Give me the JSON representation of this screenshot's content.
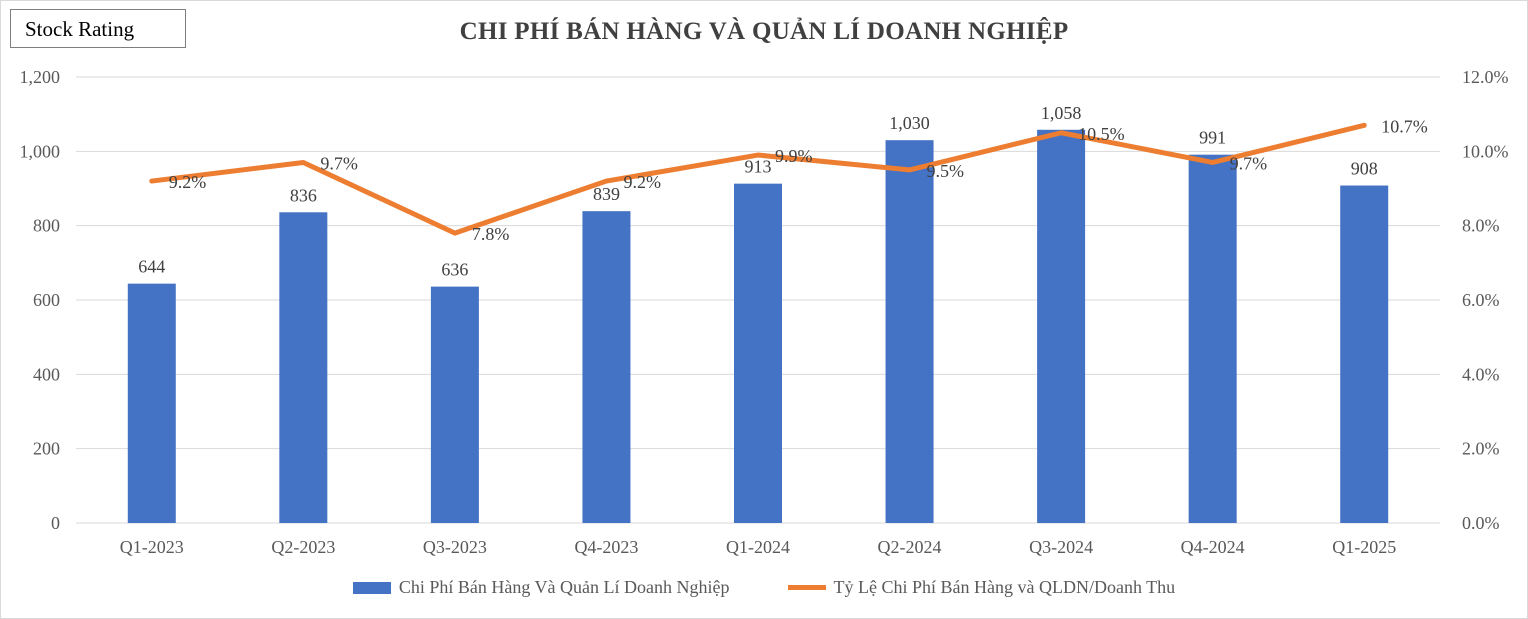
{
  "badge": {
    "label": "Stock Rating"
  },
  "chart_data": {
    "type": "bar",
    "title": "CHI PHÍ BÁN HÀNG VÀ QUẢN LÍ DOANH NGHIỆP",
    "categories": [
      "Q1-2023",
      "Q2-2023",
      "Q3-2023",
      "Q4-2023",
      "Q1-2024",
      "Q2-2024",
      "Q3-2024",
      "Q4-2024",
      "Q1-2025"
    ],
    "series": [
      {
        "name": "Chi Phí Bán Hàng Và Quản Lí Doanh Nghiệp",
        "type": "bar",
        "axis": "left",
        "color": "#4472c4",
        "values": [
          644,
          836,
          636,
          839,
          913,
          1030,
          1058,
          991,
          908
        ],
        "labels": [
          "644",
          "836",
          "636",
          "839",
          "913",
          "1,030",
          "1,058",
          "991",
          "908"
        ]
      },
      {
        "name": "Tỷ Lệ Chi Phí Bán Hàng và QLDN/Doanh Thu",
        "type": "line",
        "axis": "right",
        "color": "#ed7d31",
        "values": [
          9.2,
          9.7,
          7.8,
          9.2,
          9.9,
          9.5,
          10.5,
          9.7,
          10.7
        ],
        "labels": [
          "9.2%",
          "9.7%",
          "7.8%",
          "9.2%",
          "9.9%",
          "9.5%",
          "10.5%",
          "9.7%",
          "10.7%"
        ]
      }
    ],
    "y_left": {
      "min": 0,
      "max": 1200,
      "ticks": [
        0,
        200,
        400,
        600,
        800,
        1000,
        1200
      ],
      "tick_labels": [
        "0",
        "200",
        "400",
        "600",
        "800",
        "1,000",
        "1,200"
      ]
    },
    "y_right": {
      "min": 0,
      "max": 12,
      "ticks": [
        0,
        2,
        4,
        6,
        8,
        10,
        12
      ],
      "tick_labels": [
        "0.0%",
        "2.0%",
        "4.0%",
        "6.0%",
        "8.0%",
        "10.0%",
        "12.0%"
      ]
    },
    "grid": true,
    "legend_position": "bottom"
  }
}
